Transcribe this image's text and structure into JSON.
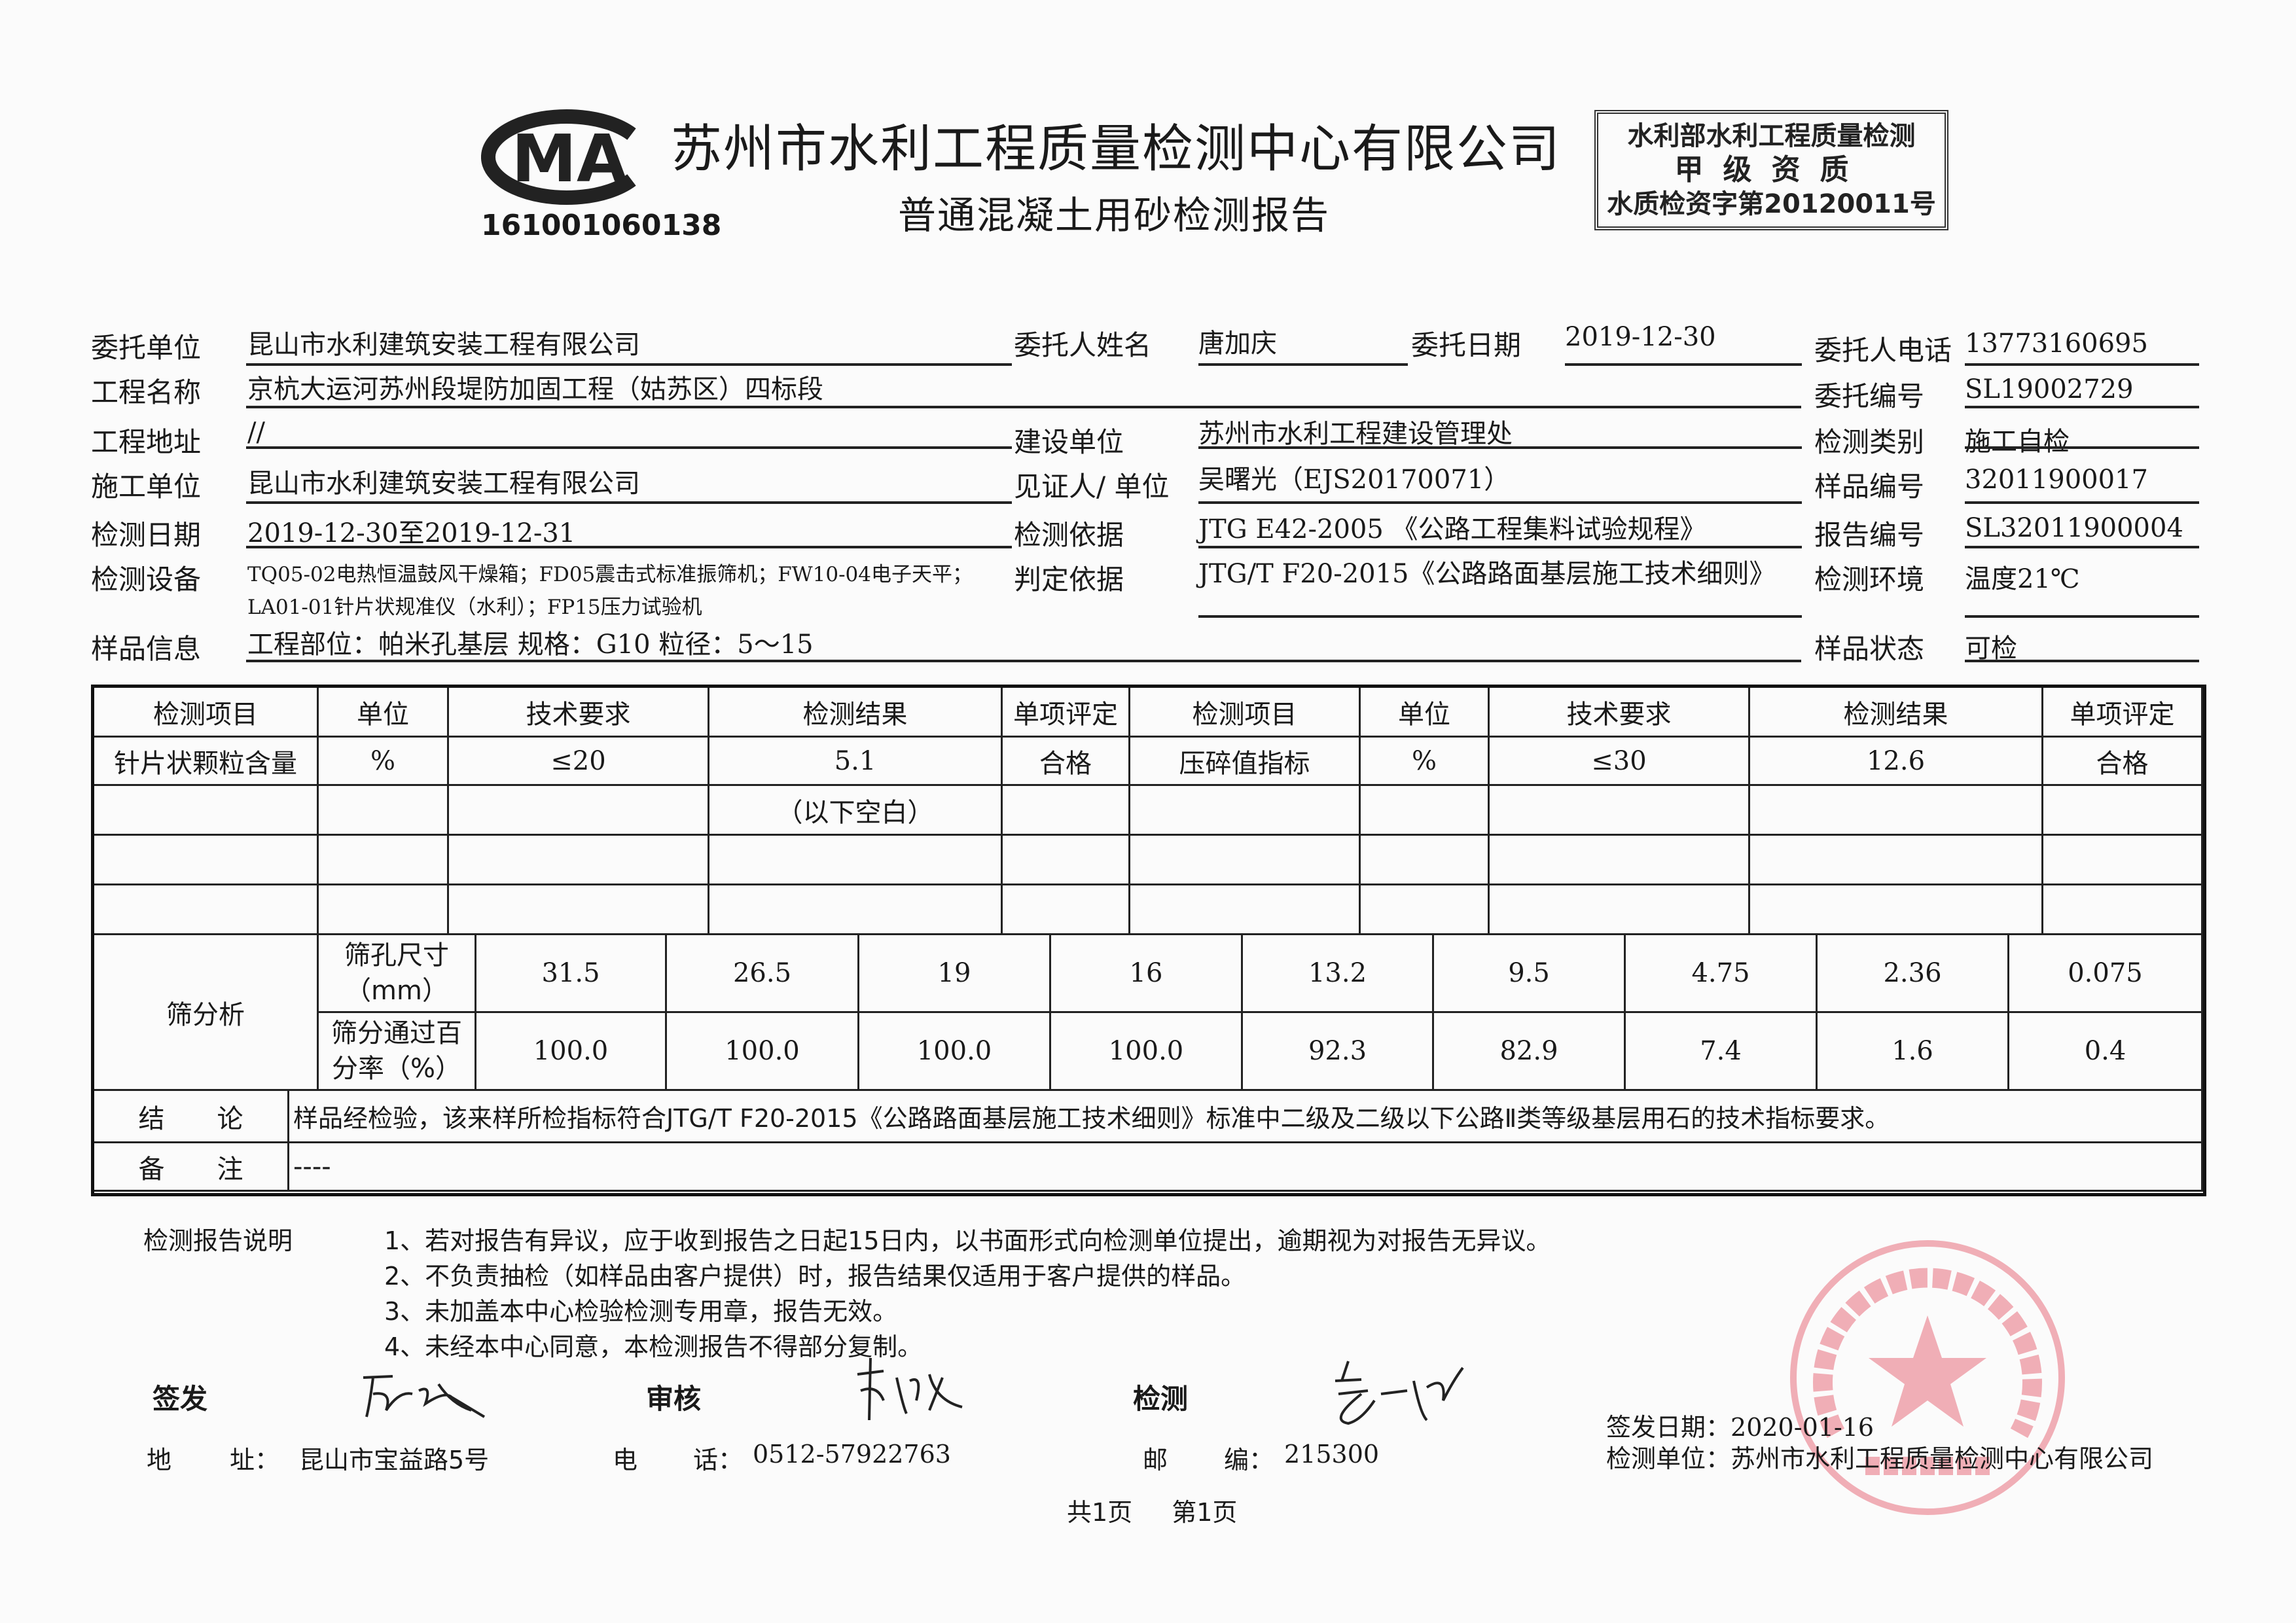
{
  "header": {
    "cma_logo_text": "MA",
    "cma_number": "161001060138",
    "company_name": "苏州市水利工程质量检测中心有限公司",
    "report_title": "普通混凝土用砂检测报告",
    "qualification": {
      "line1": "水利部水利工程质量检测",
      "line2": "甲级资质",
      "line3": "水质检资字第20120011号"
    }
  },
  "info": {
    "client_unit": {
      "label": "委托单位",
      "value": "昆山市水利建筑安装工程有限公司"
    },
    "client_name": {
      "label": "委托人姓名",
      "value": "唐加庆"
    },
    "client_date": {
      "label": "委托日期",
      "value": "2019-12-30"
    },
    "client_phone": {
      "label": "委托人电话",
      "value": "13773160695"
    },
    "project_name": {
      "label": "工程名称",
      "value": "京杭大运河苏州段堤防加固工程（姑苏区）四标段"
    },
    "client_no": {
      "label": "委托编号",
      "value": "SL19002729"
    },
    "project_address": {
      "label": "工程地址",
      "value": "//"
    },
    "builder": {
      "label": "建设单位",
      "value": "苏州市水利工程建设管理处"
    },
    "test_category": {
      "label": "检测类别",
      "value": "施工自检"
    },
    "constructor": {
      "label": "施工单位",
      "value": "昆山市水利建筑安装工程有限公司"
    },
    "witness": {
      "label": "见证人/ 单位",
      "value": "吴曙光（EJS20170071）"
    },
    "sample_no": {
      "label": "样品编号",
      "value": "32011900017"
    },
    "test_date": {
      "label": "检测日期",
      "value": "2019-12-30至2019-12-31"
    },
    "test_basis": {
      "label": "检测依据",
      "value": "JTG E42-2005 《公路工程集料试验规程》"
    },
    "report_no": {
      "label": "报告编号",
      "value": "SL32011900004"
    },
    "equipment": {
      "label": "检测设备",
      "line1": "TQ05-02电热恒温鼓风干燥箱；FD05震击式标准振筛机；FW10-04电子天平；",
      "line2": "LA01-01针片状规准仪（水利）；FP15压力试验机"
    },
    "judge_basis": {
      "label": "判定依据",
      "value": "JTG/T F20-2015《公路路面基层施工技术细则》"
    },
    "environment": {
      "label": "检测环境",
      "value": "温度21℃"
    },
    "sample_info": {
      "label": "样品信息",
      "value": "工程部位：帕米孔基层 规格：G10 粒径：5～15"
    },
    "sample_status": {
      "label": "样品状态",
      "value": "可检"
    }
  },
  "results_table": {
    "headers": [
      "检测项目",
      "单位",
      "技术要求",
      "检测结果",
      "单项评定",
      "检测项目",
      "单位",
      "技术要求",
      "检测结果",
      "单项评定"
    ],
    "rows": [
      [
        "针片状颗粒含量",
        "%",
        "≤20",
        "5.1",
        "合格",
        "压碎值指标",
        "%",
        "≤30",
        "12.6",
        "合格"
      ],
      [
        "",
        "",
        "",
        "（以下空白）",
        "",
        "",
        "",
        "",
        "",
        ""
      ],
      [
        "",
        "",
        "",
        "",
        "",
        "",
        "",
        "",
        "",
        ""
      ],
      [
        "",
        "",
        "",
        "",
        "",
        "",
        "",
        "",
        "",
        ""
      ]
    ]
  },
  "sieve": {
    "label": "筛分析",
    "size_label_1": "筛孔尺寸",
    "size_label_2": "（mm）",
    "pass_label_1": "筛分通过百",
    "pass_label_2": "分率（%）",
    "sizes": [
      "31.5",
      "26.5",
      "19",
      "16",
      "13.2",
      "9.5",
      "4.75",
      "2.36",
      "0.075"
    ],
    "passing": [
      "100.0",
      "100.0",
      "100.0",
      "100.0",
      "92.3",
      "82.9",
      "7.4",
      "1.6",
      "0.4"
    ]
  },
  "conclusion": {
    "label": "结　　论",
    "value": "样品经检验，该来样所检指标符合JTG/T F20-2015《公路路面基层施工技术细则》标准中二级及二级以下公路Ⅱ类等级基层用石的技术指标要求。"
  },
  "remark": {
    "label": "备　　注",
    "value": "----"
  },
  "notes": {
    "label": "检测报告说明",
    "items": [
      "1、若对报告有异议，应于收到报告之日起15日内，以书面形式向检测单位提出，逾期视为对报告无异议。",
      "2、不负责抽检（如样品由客户提供）时，报告结果仅适用于客户提供的样品。",
      "3、未加盖本中心检验检测专用章，报告无效。",
      "4、未经本中心同意，本检测报告不得部分复制。"
    ]
  },
  "signatures": {
    "issue_label": "签发",
    "review_label": "审核",
    "test_label": "检测"
  },
  "contact": {
    "address_label_1": "地",
    "address_label_2": "址：",
    "address": "昆山市宝益路5号",
    "phone_label_1": "电",
    "phone_label_2": "话：",
    "phone": "0512-57922763",
    "post_label_1": "邮",
    "post_label_2": "编：",
    "post": "215300"
  },
  "issue": {
    "date_label": "签发日期：",
    "date": "2020-01-16",
    "unit_label": "检测单位：",
    "unit": "苏州市水利工程质量检测中心有限公司"
  },
  "stamp": {
    "ring_text": "苏州市水利工程质量检测中心有限公司",
    "bottom_text": "检验检测专用章",
    "color": "#e8707e"
  },
  "pagination": {
    "total": "共1页",
    "current": "第1页"
  }
}
